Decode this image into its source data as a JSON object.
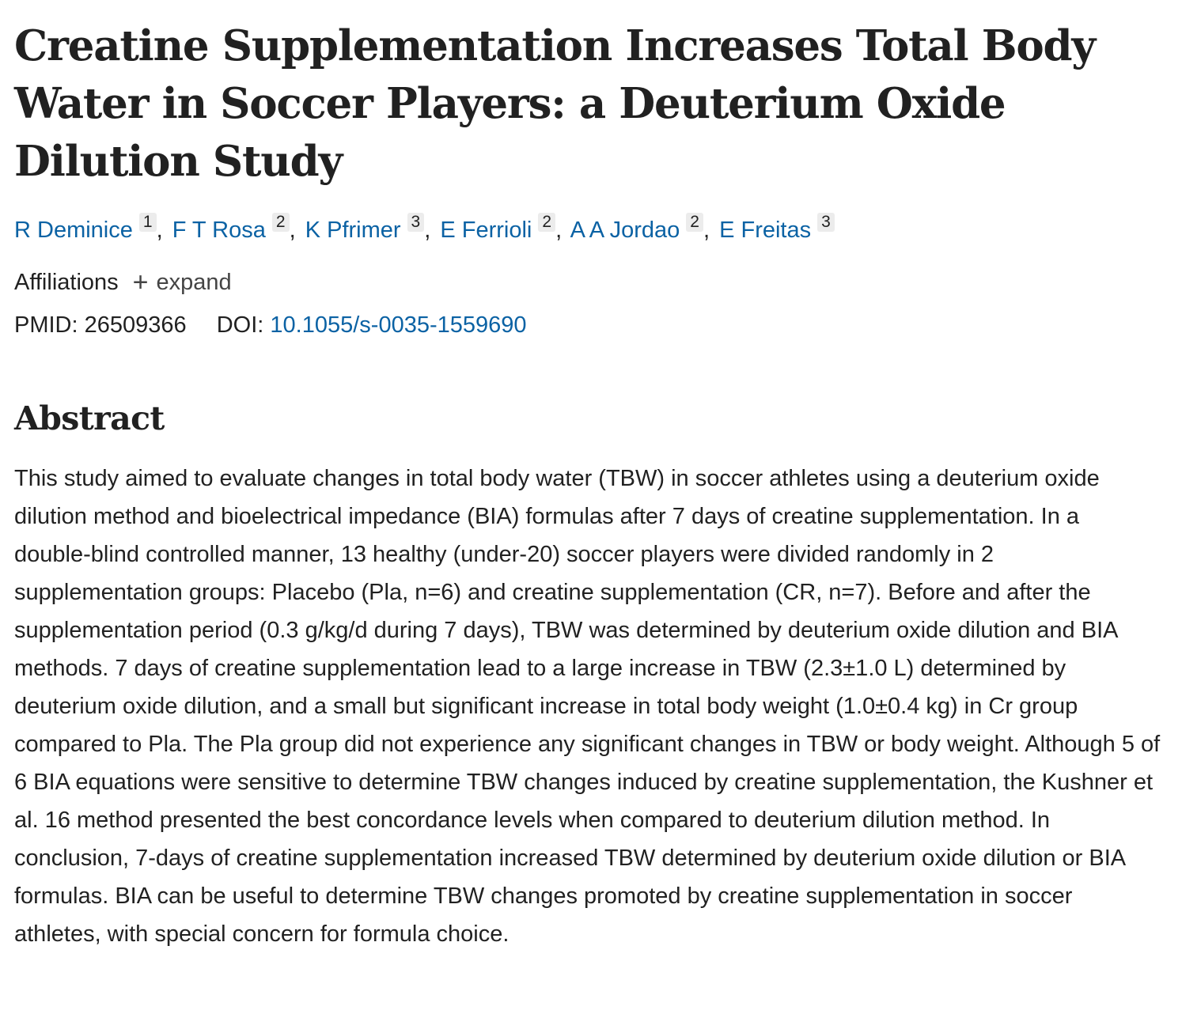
{
  "article": {
    "title": "Creatine Supplementation Increases Total Body Water in Soccer Players: a Deuterium Oxide Dilution Study",
    "authors": [
      {
        "name": "R Deminice",
        "affiliation": "1"
      },
      {
        "name": "F T Rosa",
        "affiliation": "2"
      },
      {
        "name": "K Pfrimer",
        "affiliation": "3"
      },
      {
        "name": "E Ferrioli",
        "affiliation": "2"
      },
      {
        "name": "A A Jordao",
        "affiliation": "2"
      },
      {
        "name": "E Freitas",
        "affiliation": "3"
      }
    ],
    "author_separator": ",",
    "affiliations_label": "Affiliations",
    "expand_label": "expand",
    "pmid_label": "PMID: 26509366",
    "doi_label": "DOI:",
    "doi_value": "10.1055/s-0035-1559690"
  },
  "abstract": {
    "heading": "Abstract",
    "text": "This study aimed to evaluate changes in total body water (TBW) in soccer athletes using a deuterium oxide dilution method and bioelectrical impedance (BIA) formulas after 7 days of creatine supplementation. In a double-blind controlled manner, 13 healthy (under-20) soccer players were divided randomly in 2 supplementation groups: Placebo (Pla, n=6) and creatine supplementation (CR, n=7). Before and after the supplementation period (0.3 g/kg/d during 7 days), TBW was determined by deuterium oxide dilution and BIA methods. 7 days of creatine supplementation lead to a large increase in TBW (2.3±1.0 L) determined by deuterium oxide dilution, and a small but significant increase in total body weight (1.0±0.4 kg) in Cr group compared to Pla. The Pla group did not experience any significant changes in TBW or body weight. Although 5 of 6 BIA equations were sensitive to determine TBW changes induced by creatine supplementation, the Kushner et al. 16 method presented the best concordance levels when compared to deuterium dilution method. In conclusion, 7-days of creatine supplementation increased TBW determined by deuterium oxide dilution or BIA formulas. BIA can be useful to determine TBW changes promoted by creatine supplementation in soccer athletes, with special concern for formula choice."
  },
  "colors": {
    "link": "#0b62a4",
    "text": "#212121",
    "badge_bg": "#ececec"
  }
}
